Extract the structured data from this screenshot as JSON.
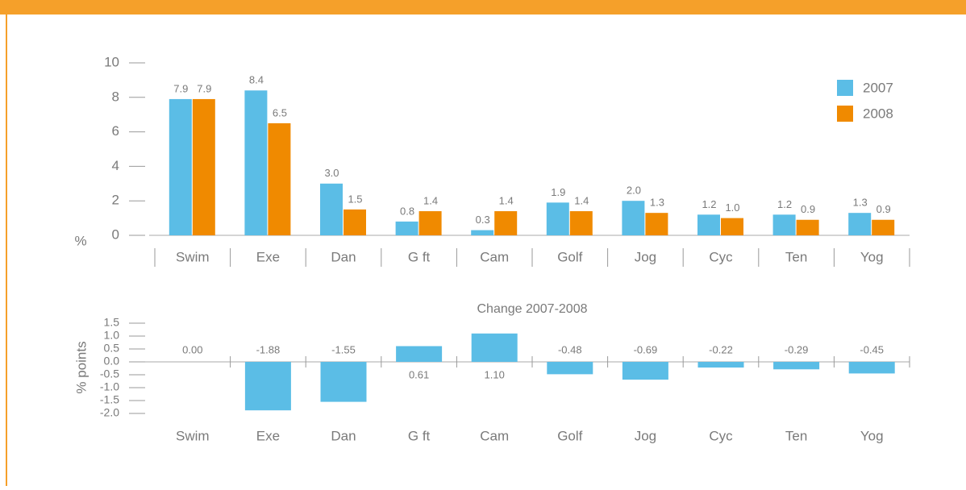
{
  "chart_data": [
    {
      "type": "bar",
      "ylabel": "%",
      "categories": [
        "Swim",
        "Exe",
        "Dan",
        "G ft",
        "Cam",
        "Golf",
        "Jog",
        "Cyc",
        "Ten",
        "Yog"
      ],
      "series": [
        {
          "name": "2007",
          "color": "#5bbde6",
          "values": [
            7.9,
            8.4,
            3.0,
            0.8,
            0.3,
            1.9,
            2.0,
            1.2,
            1.2,
            1.3
          ],
          "value_labels": [
            "7.9",
            "8.4",
            "3.0",
            "0.8",
            "0.3",
            "1.9",
            "2.0",
            "1.2",
            "1.2",
            "1.3"
          ]
        },
        {
          "name": "2008",
          "color": "#f08a00",
          "values": [
            7.9,
            6.5,
            1.5,
            1.4,
            1.4,
            1.4,
            1.3,
            1.0,
            0.9,
            0.9
          ],
          "value_labels": [
            "7.9",
            "6.5",
            "1.5",
            "1.4",
            "1.4",
            "1.4",
            "1.3",
            "1.0",
            "0.9",
            "0.9"
          ]
        }
      ],
      "ylim": [
        0,
        10
      ],
      "yticks": [
        0,
        2,
        4,
        6,
        8,
        10
      ],
      "legend": "upper right"
    },
    {
      "type": "bar",
      "title": "Change 2007-2008",
      "ylabel": "% points",
      "categories": [
        "Swim",
        "Exe",
        "Dan",
        "G ft",
        "Cam",
        "Golf",
        "Jog",
        "Cyc",
        "Ten",
        "Yog"
      ],
      "values": [
        0,
        -1.88,
        -1.55,
        0.61,
        1.1,
        -0.48,
        -0.69,
        -0.22,
        -0.29,
        -0.45
      ],
      "value_labels": [
        "0.00",
        "-1.88",
        "-1.55",
        "0.61",
        "1.10",
        "-0.48",
        "-0.69",
        "-0.22",
        "-0.29",
        "-0.45"
      ],
      "color": "#5bbde6",
      "ylim": [
        -2,
        1.5
      ],
      "yticks": [
        1.5,
        {
          "value": 1,
          "label": "1.0"
        },
        0.5,
        {
          "value": 0,
          "label": "0.0"
        },
        -0.5,
        {
          "value": -1,
          "label": "-1.0"
        },
        -1.5,
        {
          "value": -2,
          "label": "-2.0"
        }
      ]
    }
  ]
}
